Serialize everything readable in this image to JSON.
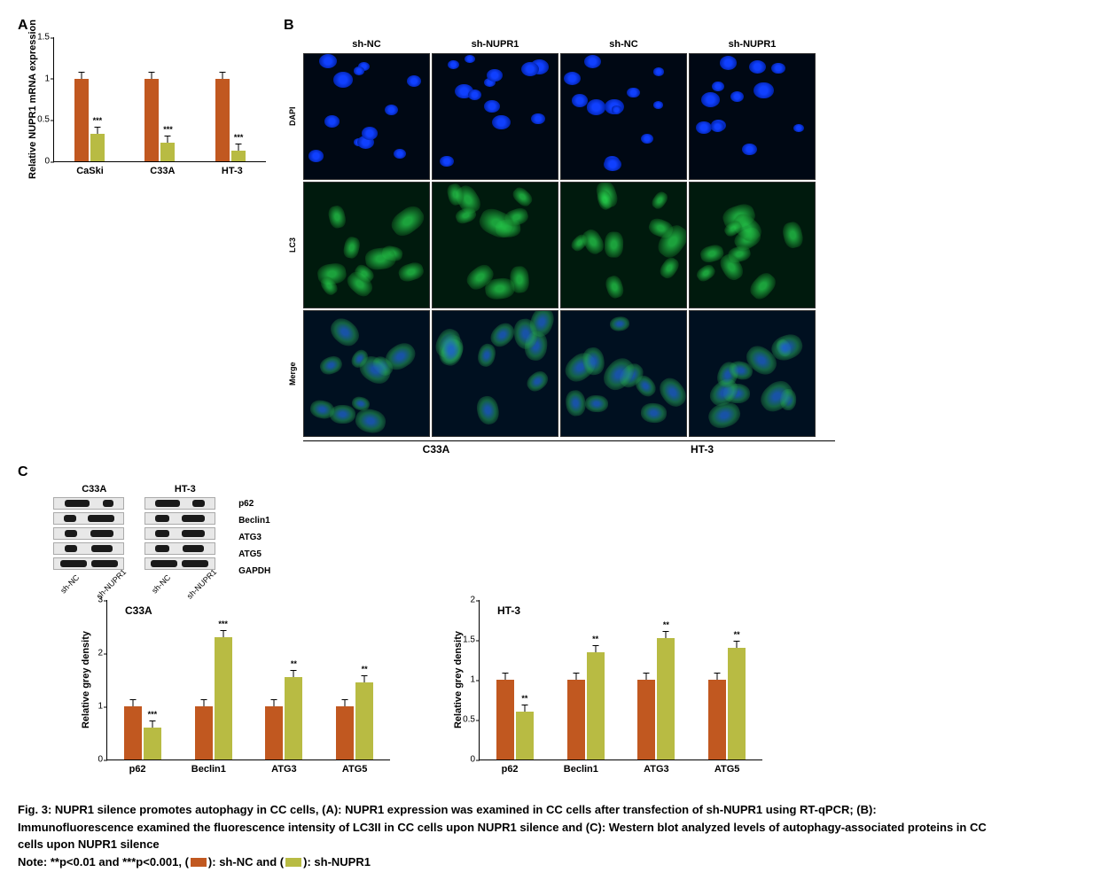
{
  "colors": {
    "shNC": "#c15820",
    "shNUPR1": "#b8bb43",
    "axis": "#000000"
  },
  "panelA": {
    "label": "A",
    "ylabel": "Relative NUPR1 mRNA\nexpression",
    "ylim": [
      0,
      1.5
    ],
    "yticks": [
      0,
      0.5,
      1.0,
      1.5
    ],
    "categories": [
      "CaSki",
      "C33A",
      "HT-3"
    ],
    "series": [
      {
        "name": "sh-NC",
        "color": "#c15820",
        "values": [
          1.0,
          1.0,
          1.0
        ],
        "err": [
          0.03,
          0.05,
          0.1
        ]
      },
      {
        "name": "sh-NUPR1",
        "color": "#b8bb43",
        "values": [
          0.33,
          0.22,
          0.13
        ],
        "err": [
          0.05,
          0.04,
          0.04
        ],
        "sig": [
          "***",
          "***",
          "***"
        ]
      }
    ]
  },
  "panelB": {
    "label": "B",
    "col_headers": [
      "sh-NC",
      "sh-NUPR1",
      "sh-NC",
      "sh-NUPR1"
    ],
    "row_labels": [
      "DAPI",
      "LC3",
      "Merge"
    ],
    "cell_lines": [
      "C33A",
      "HT-3"
    ]
  },
  "panelC": {
    "label": "C",
    "western": {
      "cell_lines": [
        "C33A",
        "HT-3"
      ],
      "proteins": [
        "p62",
        "Beclin1",
        "ATG3",
        "ATG5",
        "GAPDH"
      ],
      "lanes": [
        "sh-NC",
        "sh-NUPR1"
      ],
      "band_intensities": {
        "C33A": {
          "p62": [
            28,
            12
          ],
          "Beclin1": [
            14,
            30
          ],
          "ATG3": [
            14,
            26
          ],
          "ATG5": [
            14,
            24
          ],
          "GAPDH": [
            30,
            30
          ]
        },
        "HT-3": {
          "p62": [
            28,
            14
          ],
          "Beclin1": [
            16,
            26
          ],
          "ATG3": [
            16,
            26
          ],
          "ATG5": [
            16,
            24
          ],
          "GAPDH": [
            30,
            30
          ]
        }
      }
    },
    "chart_C33A": {
      "title": "C33A",
      "ylabel": "Relative grey density",
      "ylim": [
        0,
        3
      ],
      "yticks": [
        0,
        1,
        2,
        3
      ],
      "categories": [
        "p62",
        "Beclin1",
        "ATG3",
        "ATG5"
      ],
      "series": [
        {
          "name": "sh-NC",
          "color": "#c15820",
          "values": [
            1.0,
            1.0,
            1.0,
            1.0
          ],
          "err": [
            0.05,
            0.04,
            0.04,
            0.05
          ]
        },
        {
          "name": "sh-NUPR1",
          "color": "#b8bb43",
          "values": [
            0.6,
            2.3,
            1.55,
            1.45
          ],
          "err": [
            0.05,
            0.07,
            0.07,
            0.05
          ],
          "sig": [
            "***",
            "***",
            "**",
            "**"
          ]
        }
      ]
    },
    "chart_HT3": {
      "title": "HT-3",
      "ylabel": "Relative grey density",
      "ylim": [
        0,
        2.0
      ],
      "yticks": [
        0,
        0.5,
        1.0,
        1.5,
        2.0
      ],
      "categories": [
        "p62",
        "Beclin1",
        "ATG3",
        "ATG5"
      ],
      "series": [
        {
          "name": "sh-NC",
          "color": "#c15820",
          "values": [
            1.0,
            1.0,
            1.0,
            1.0
          ],
          "err": [
            0.06,
            0.05,
            0.07,
            0.06
          ]
        },
        {
          "name": "sh-NUPR1",
          "color": "#b8bb43",
          "values": [
            0.6,
            1.35,
            1.52,
            1.4
          ],
          "err": [
            0.04,
            0.05,
            0.07,
            0.06
          ],
          "sig": [
            "**",
            "**",
            "**",
            "**"
          ]
        }
      ]
    }
  },
  "caption": {
    "title": "Fig. 3: NUPR1 silence promotes autophagy in CC cells, (A): NUPR1 expression was examined in CC cells after transfection of sh-NUPR1 using RT-qPCR; (B): Immunofluorescence examined the fluorescence intensity of LC3II in CC cells upon NUPR1 silence and (C): Western blot analyzed levels of autophagy-associated proteins in CC cells upon NUPR1 silence",
    "note_prefix": "Note: **p<0.01 and ***p<0.001, (",
    "legend1": "): sh-NC and (",
    "legend2": "): sh-NUPR1"
  }
}
